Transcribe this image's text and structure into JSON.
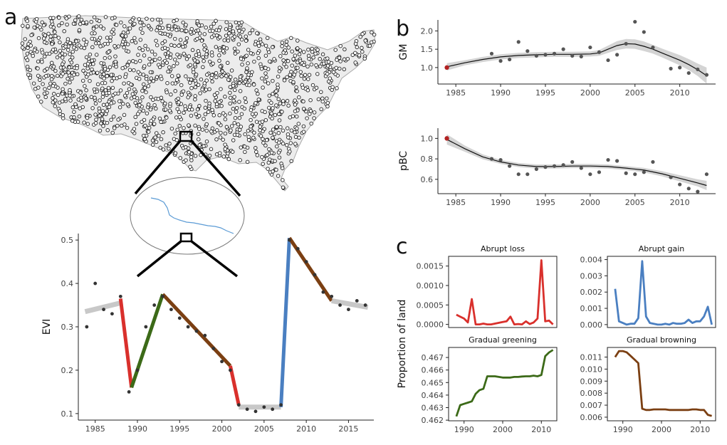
{
  "panel_labels": [
    "a",
    "b",
    "c"
  ],
  "colors": {
    "loss": "#d9302c",
    "gain": "#4a7fc1",
    "greening": "#3c6a18",
    "browning": "#7b3f12",
    "stable": "#bbbbbb",
    "point": "#333333",
    "first_point": "#b22222"
  },
  "map": {
    "site_icon": "circle-marker-icon",
    "stream_icon": "stream-line-icon"
  },
  "chart_data": [
    {
      "id": "evi",
      "type": "scatter",
      "ylabel": "EVI",
      "xlim": [
        1983,
        2018
      ],
      "ylim": [
        0.085,
        0.515
      ],
      "xticks": [
        1985,
        1990,
        1995,
        2000,
        2005,
        2010,
        2015
      ],
      "yticks": [
        0.1,
        0.2,
        0.3,
        0.4,
        0.5
      ],
      "points": [
        [
          1984,
          0.3
        ],
        [
          1985,
          0.4
        ],
        [
          1986,
          0.34
        ],
        [
          1987,
          0.33
        ],
        [
          1988,
          0.37
        ],
        [
          1989,
          0.15
        ],
        [
          1990,
          0.2
        ],
        [
          1991,
          0.3
        ],
        [
          1992,
          0.35
        ],
        [
          1993,
          0.37
        ],
        [
          1994,
          0.34
        ],
        [
          1995,
          0.32
        ],
        [
          1996,
          0.3
        ],
        [
          1997,
          0.29
        ],
        [
          1998,
          0.28
        ],
        [
          1999,
          0.25
        ],
        [
          2000,
          0.22
        ],
        [
          2001,
          0.2
        ],
        [
          2002,
          0.12
        ],
        [
          2003,
          0.11
        ],
        [
          2004,
          0.105
        ],
        [
          2005,
          0.115
        ],
        [
          2006,
          0.11
        ],
        [
          2007,
          0.12
        ],
        [
          2008,
          0.5
        ],
        [
          2009,
          0.48
        ],
        [
          2010,
          0.45
        ],
        [
          2011,
          0.42
        ],
        [
          2012,
          0.38
        ],
        [
          2013,
          0.37
        ],
        [
          2014,
          0.35
        ],
        [
          2015,
          0.34
        ],
        [
          2016,
          0.36
        ],
        [
          2017,
          0.35
        ]
      ],
      "segments": [
        {
          "kind": "stable",
          "x": [
            1983.8,
            1988
          ],
          "y": [
            0.335,
            0.355
          ]
        },
        {
          "kind": "loss",
          "x": [
            1988,
            1989.3
          ],
          "y": [
            0.365,
            0.16
          ]
        },
        {
          "kind": "greening",
          "x": [
            1989.3,
            1993
          ],
          "y": [
            0.16,
            0.375
          ]
        },
        {
          "kind": "browning",
          "x": [
            1993,
            2001
          ],
          "y": [
            0.375,
            0.21
          ]
        },
        {
          "kind": "loss",
          "x": [
            2001,
            2002
          ],
          "y": [
            0.21,
            0.12
          ]
        },
        {
          "kind": "stable",
          "x": [
            2002,
            2007
          ],
          "y": [
            0.115,
            0.115
          ]
        },
        {
          "kind": "gain",
          "x": [
            2007,
            2008
          ],
          "y": [
            0.115,
            0.505
          ]
        },
        {
          "kind": "browning",
          "x": [
            2008,
            2013
          ],
          "y": [
            0.505,
            0.36
          ]
        },
        {
          "kind": "stable",
          "x": [
            2013,
            2017.3
          ],
          "y": [
            0.36,
            0.345
          ]
        }
      ]
    },
    {
      "id": "gm",
      "type": "scatter",
      "ylabel": "GM",
      "xlim": [
        1983,
        2014
      ],
      "ylim": [
        0.55,
        2.3
      ],
      "xticks": [
        1985,
        1990,
        1995,
        2000,
        2005,
        2010
      ],
      "yticks": [
        1.0,
        1.5,
        2.0
      ],
      "first_point": [
        1984,
        1.0
      ],
      "points": [
        [
          1989,
          1.38
        ],
        [
          1990,
          1.18
        ],
        [
          1991,
          1.22
        ],
        [
          1992,
          1.7
        ],
        [
          1993,
          1.45
        ],
        [
          1994,
          1.32
        ],
        [
          1995,
          1.35
        ],
        [
          1996,
          1.38
        ],
        [
          1997,
          1.5
        ],
        [
          1998,
          1.32
        ],
        [
          1999,
          1.3
        ],
        [
          2000,
          1.55
        ],
        [
          2001,
          1.42
        ],
        [
          2002,
          1.2
        ],
        [
          2003,
          1.35
        ],
        [
          2004,
          1.65
        ],
        [
          2005,
          2.25
        ],
        [
          2006,
          1.97
        ],
        [
          2007,
          1.55
        ],
        [
          2009,
          0.97
        ],
        [
          2010,
          1.0
        ],
        [
          2011,
          0.85
        ],
        [
          2012,
          0.95
        ],
        [
          2013,
          0.8
        ]
      ],
      "fit": [
        [
          1984,
          1.02
        ],
        [
          1986,
          1.13
        ],
        [
          1988,
          1.22
        ],
        [
          1990,
          1.29
        ],
        [
          1992,
          1.33
        ],
        [
          1994,
          1.35
        ],
        [
          1996,
          1.36
        ],
        [
          1998,
          1.36
        ],
        [
          2000,
          1.37
        ],
        [
          2001,
          1.4
        ],
        [
          2002,
          1.5
        ],
        [
          2003,
          1.6
        ],
        [
          2004,
          1.65
        ],
        [
          2005,
          1.64
        ],
        [
          2006,
          1.58
        ],
        [
          2007,
          1.5
        ],
        [
          2008,
          1.4
        ],
        [
          2009,
          1.3
        ],
        [
          2010,
          1.2
        ],
        [
          2011,
          1.08
        ],
        [
          2012,
          0.94
        ],
        [
          2013,
          0.78
        ]
      ],
      "band": [
        0.1,
        0.07,
        0.07,
        0.07,
        0.07,
        0.07,
        0.07,
        0.07,
        0.07,
        0.08,
        0.1,
        0.12,
        0.13,
        0.13,
        0.13,
        0.12,
        0.12,
        0.13,
        0.14,
        0.15,
        0.17,
        0.22
      ]
    },
    {
      "id": "pbc",
      "type": "scatter",
      "ylabel": "pBC",
      "xlim": [
        1983,
        2014
      ],
      "ylim": [
        0.46,
        1.1
      ],
      "xticks": [
        1985,
        1990,
        1995,
        2000,
        2005,
        2010
      ],
      "yticks": [
        0.6,
        0.8,
        1.0
      ],
      "first_point": [
        1984,
        1.0
      ],
      "points": [
        [
          1989,
          0.8
        ],
        [
          1990,
          0.79
        ],
        [
          1991,
          0.73
        ],
        [
          1992,
          0.65
        ],
        [
          1993,
          0.65
        ],
        [
          1994,
          0.7
        ],
        [
          1995,
          0.72
        ],
        [
          1996,
          0.73
        ],
        [
          1997,
          0.74
        ],
        [
          1998,
          0.77
        ],
        [
          1999,
          0.71
        ],
        [
          2000,
          0.65
        ],
        [
          2001,
          0.67
        ],
        [
          2002,
          0.79
        ],
        [
          2003,
          0.78
        ],
        [
          2004,
          0.66
        ],
        [
          2005,
          0.65
        ],
        [
          2006,
          0.67
        ],
        [
          2007,
          0.77
        ],
        [
          2009,
          0.62
        ],
        [
          2010,
          0.55
        ],
        [
          2011,
          0.51
        ],
        [
          2012,
          0.48
        ],
        [
          2013,
          0.65
        ]
      ],
      "fit": [
        [
          1984,
          0.99
        ],
        [
          1986,
          0.9
        ],
        [
          1988,
          0.82
        ],
        [
          1990,
          0.77
        ],
        [
          1992,
          0.74
        ],
        [
          1994,
          0.725
        ],
        [
          1996,
          0.725
        ],
        [
          1998,
          0.73
        ],
        [
          2000,
          0.73
        ],
        [
          2002,
          0.725
        ],
        [
          2004,
          0.71
        ],
        [
          2006,
          0.69
        ],
        [
          2008,
          0.655
        ],
        [
          2010,
          0.61
        ],
        [
          2012,
          0.565
        ],
        [
          2013,
          0.54
        ]
      ],
      "band": [
        0.05,
        0.03,
        0.025,
        0.02,
        0.02,
        0.02,
        0.02,
        0.02,
        0.02,
        0.02,
        0.02,
        0.022,
        0.025,
        0.03,
        0.035,
        0.045
      ]
    },
    {
      "id": "loss",
      "type": "line",
      "title": "Abrupt loss",
      "series_color": "loss",
      "xlim": [
        1986,
        2014
      ],
      "ylim": [
        -8e-05,
        0.00175
      ],
      "xticks": [],
      "yticks": [
        0.0,
        0.0005,
        0.001,
        0.0015
      ],
      "ytick_labels": [
        "0.0000",
        "0.0005",
        "0.0010",
        "0.0015"
      ],
      "x": [
        1988,
        1989,
        1990,
        1991,
        1992,
        1993,
        1994,
        1995,
        1996,
        1997,
        1998,
        1999,
        2000,
        2001,
        2002,
        2003,
        2004,
        2005,
        2006,
        2007,
        2008,
        2009,
        2010,
        2011,
        2012,
        2013
      ],
      "y": [
        0.00025,
        0.0002,
        0.00015,
        5e-05,
        0.00065,
        0.0,
        0.0,
        2e-05,
        0.0,
        0.0,
        2e-05,
        4e-05,
        6e-05,
        8e-05,
        0.0002,
        0.0,
        1e-05,
        0.0,
        8e-05,
        1e-05,
        5e-05,
        0.00015,
        0.00165,
        8e-05,
        0.0001,
        0.0
      ]
    },
    {
      "id": "gain",
      "type": "line",
      "title": "Abrupt gain",
      "series_color": "gain",
      "xlim": [
        1986,
        2014
      ],
      "ylim": [
        -0.00018,
        0.0042
      ],
      "xticks": [],
      "yticks": [
        0.0,
        0.001,
        0.002,
        0.003,
        0.004
      ],
      "ytick_labels": [
        "0.000",
        "0.001",
        "0.002",
        "0.003",
        "0.004"
      ],
      "x": [
        1988,
        1989,
        1990,
        1991,
        1992,
        1993,
        1994,
        1995,
        1996,
        1997,
        1998,
        1999,
        2000,
        2001,
        2002,
        2003,
        2004,
        2005,
        2006,
        2007,
        2008,
        2009,
        2010,
        2011,
        2012,
        2013
      ],
      "y": [
        0.0022,
        0.0002,
        0.0001,
        0.0,
        5e-05,
        5e-05,
        0.0004,
        0.0039,
        0.0005,
        0.0001,
        5e-05,
        0.0,
        0.0,
        5e-05,
        0.0,
        0.0001,
        5e-05,
        5e-05,
        0.0001,
        0.0003,
        0.0001,
        0.0002,
        0.0002,
        0.0005,
        0.0011,
        0.0
      ]
    },
    {
      "id": "greening",
      "type": "line",
      "title": "Gradual greening",
      "series_color": "greening",
      "xlim": [
        1986,
        2014
      ],
      "ylim": [
        0.46195,
        0.4678
      ],
      "xticks": [
        1990,
        2000,
        2010
      ],
      "yticks": [
        0.462,
        0.463,
        0.464,
        0.465,
        0.466,
        0.467
      ],
      "ytick_labels": [
        "0.462",
        "0.463",
        "0.464",
        "0.465",
        "0.466",
        "0.467"
      ],
      "x": [
        1988,
        1989,
        1990,
        1991,
        1992,
        1993,
        1994,
        1995,
        1996,
        1997,
        1998,
        1999,
        2000,
        2001,
        2002,
        2003,
        2004,
        2005,
        2006,
        2007,
        2008,
        2009,
        2010,
        2011,
        2012,
        2013
      ],
      "y": [
        0.4623,
        0.4632,
        0.4633,
        0.4634,
        0.4635,
        0.4641,
        0.4644,
        0.4645,
        0.4655,
        0.4655,
        0.4655,
        0.46545,
        0.4654,
        0.4654,
        0.4654,
        0.46545,
        0.46545,
        0.46548,
        0.4655,
        0.4655,
        0.46555,
        0.4655,
        0.4656,
        0.4671,
        0.4674,
        0.4676
      ]
    },
    {
      "id": "browning",
      "type": "line",
      "title": "Gradual browning",
      "series_color": "browning",
      "xlim": [
        1986,
        2014
      ],
      "ylim": [
        0.0057,
        0.0118
      ],
      "xticks": [
        1990,
        2000,
        2010
      ],
      "yticks": [
        0.006,
        0.007,
        0.008,
        0.009,
        0.01,
        0.011
      ],
      "ytick_labels": [
        "0.006",
        "0.007",
        "0.008",
        "0.009",
        "0.010",
        "0.011"
      ],
      "x": [
        1988,
        1989,
        1990,
        1991,
        1992,
        1993,
        1994,
        1995,
        1996,
        1997,
        1998,
        1999,
        2000,
        2001,
        2002,
        2003,
        2004,
        2005,
        2006,
        2007,
        2008,
        2009,
        2010,
        2011,
        2012,
        2013
      ],
      "y": [
        0.011,
        0.0115,
        0.0115,
        0.0114,
        0.0111,
        0.0108,
        0.0105,
        0.0067,
        0.0066,
        0.0066,
        0.00665,
        0.00665,
        0.00665,
        0.00665,
        0.0066,
        0.0066,
        0.0066,
        0.0066,
        0.0066,
        0.0066,
        0.00665,
        0.00665,
        0.0066,
        0.0066,
        0.0062,
        0.0061
      ]
    }
  ],
  "shared_labels": {
    "c_ylabel": "Proportion of land"
  }
}
